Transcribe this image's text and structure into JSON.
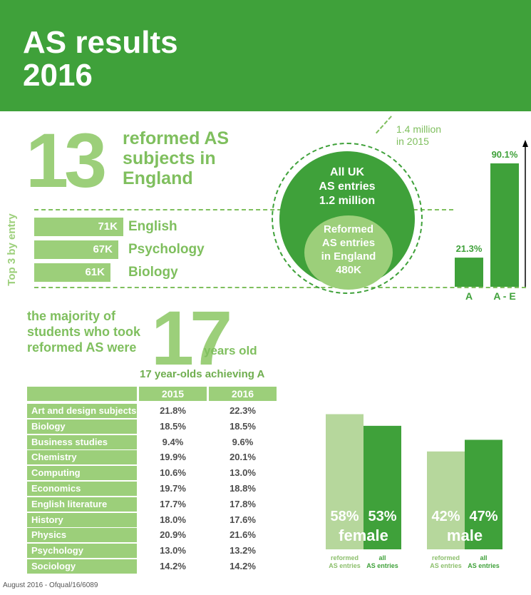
{
  "header": {
    "title_line1": "AS results",
    "title_line2": "2016"
  },
  "reformed": {
    "count": "13",
    "caption": "reformed AS subjects in England"
  },
  "top3": {
    "label": "Top 3 by entry",
    "items": [
      {
        "value": 71,
        "value_label": "71K",
        "subject": "English"
      },
      {
        "value": 67,
        "value_label": "67K",
        "subject": "Psychology"
      },
      {
        "value": 61,
        "value_label": "61K",
        "subject": "Biology"
      }
    ]
  },
  "entries": {
    "prev_line1": "1.4 million",
    "prev_line2": "in 2015",
    "uk_line1": "All UK",
    "uk_line2": "AS entries",
    "uk_line3": "1.2 million",
    "ref_line1": "Reformed",
    "ref_line2": "AS entries",
    "ref_line3": "in England",
    "ref_line4": "480K"
  },
  "age": {
    "caption": "the majority of students who took reformed AS were",
    "number": "17",
    "suffix": "years old"
  },
  "table": {
    "title": "17 year-olds achieving A",
    "columns": [
      "2015",
      "2016"
    ],
    "rows": [
      {
        "subject": "Art and design subjects",
        "v2015": "21.8%",
        "v2016": "22.3%"
      },
      {
        "subject": "Biology",
        "v2015": "18.5%",
        "v2016": "18.5%"
      },
      {
        "subject": "Business studies",
        "v2015": "9.4%",
        "v2016": "9.6%"
      },
      {
        "subject": "Chemistry",
        "v2015": "19.9%",
        "v2016": "20.1%"
      },
      {
        "subject": "Computing",
        "v2015": "10.6%",
        "v2016": "13.0%"
      },
      {
        "subject": "Economics",
        "v2015": "19.7%",
        "v2016": "18.8%"
      },
      {
        "subject": "English literature",
        "v2015": "17.7%",
        "v2016": "17.8%"
      },
      {
        "subject": "History",
        "v2015": "18.0%",
        "v2016": "17.6%"
      },
      {
        "subject": "Physics",
        "v2015": "20.9%",
        "v2016": "21.6%"
      },
      {
        "subject": "Psychology",
        "v2015": "13.0%",
        "v2016": "13.2%"
      },
      {
        "subject": "Sociology",
        "v2015": "14.2%",
        "v2016": "14.2%"
      }
    ]
  },
  "footer": "August 2016 - Ofqual/16/6089",
  "colors": {
    "dark_green": "#3fa13a",
    "light_green": "#9ccf7a",
    "pale_green": "#b6d79c"
  },
  "chart_data": [
    {
      "type": "bar",
      "categories": [
        "A",
        "A - E"
      ],
      "values": [
        21.3,
        90.1
      ],
      "value_labels": [
        "21.3%",
        "90.1%"
      ],
      "ylim": [
        0,
        100
      ]
    },
    {
      "type": "bar",
      "categories": [
        "female",
        "male"
      ],
      "series": [
        {
          "name": "reformed AS entries",
          "values": [
            58,
            42
          ],
          "labels": [
            "58%",
            "42%"
          ]
        },
        {
          "name": "all AS entries",
          "values": [
            53,
            47
          ],
          "labels": [
            "53%",
            "47%"
          ]
        }
      ],
      "legend_line1": [
        "reformed",
        "all"
      ],
      "legend_line2": [
        "AS entries",
        "AS entries"
      ],
      "ylim": [
        0,
        60
      ]
    }
  ]
}
